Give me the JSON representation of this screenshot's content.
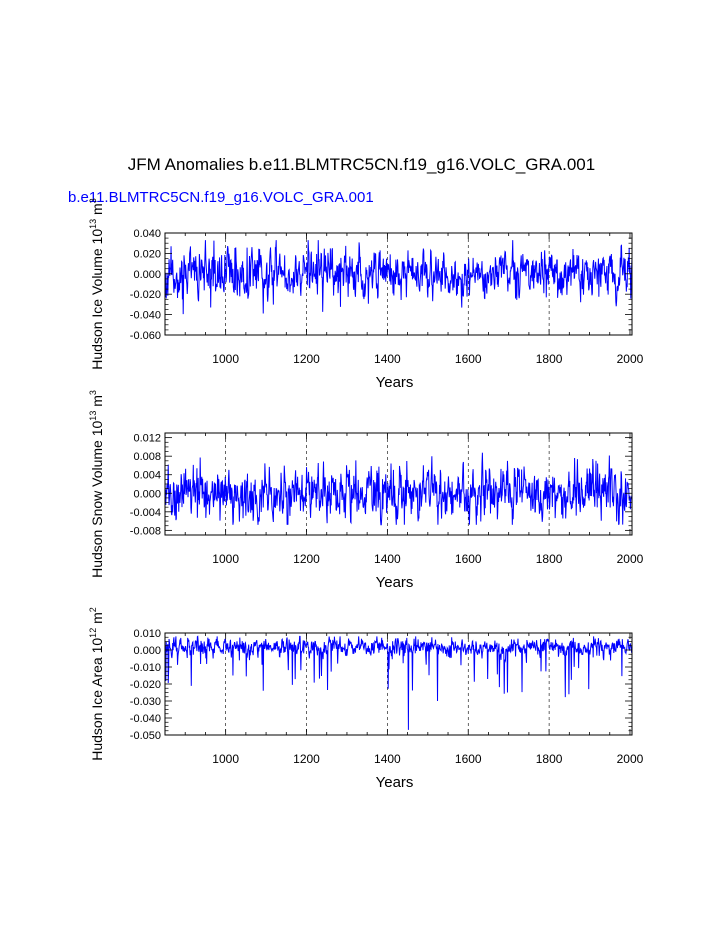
{
  "title": "JFM Anomalies b.e11.BLMTRC5CN.f19_g16.VOLC_GRA.001",
  "subtitle": "b.e11.BLMTRC5CN.f19_g16.VOLC_GRA.001",
  "colors": {
    "line": "#0000ff",
    "axis": "#000000",
    "subtitle": "#0000ff"
  },
  "chart_data": [
    {
      "type": "line",
      "name": "ice-volume",
      "xlabel": "Years",
      "ylabel": {
        "main": "Hudson Ice Volume 10",
        "exp": "13",
        "unit": " m",
        "unitexp": "3"
      },
      "xlim": [
        850,
        2005
      ],
      "ylim": [
        -0.06,
        0.04
      ],
      "xticks": [
        1000,
        1200,
        1400,
        1600,
        1800,
        2000
      ],
      "xtick_labels": [
        "1000",
        "1200",
        "1400",
        "1600",
        "1800",
        "2000"
      ],
      "yticks": [
        -0.06,
        -0.04,
        -0.02,
        0.0,
        0.02,
        0.04
      ],
      "ytick_labels": [
        "-0.060",
        "-0.040",
        "-0.020",
        "0.000",
        "0.020",
        "0.040"
      ],
      "vgrid": [
        1000,
        1200,
        1400,
        1600,
        1800
      ],
      "series": [
        {
          "name": "Hudson Ice Volume",
          "x_start": 850,
          "x_end": 2005,
          "n": 1156,
          "seed": 11,
          "amp": 0.0115,
          "spike_prob": 0.01,
          "spike_amp": 0.028,
          "spike_dir": 0,
          "floor": -0.042,
          "ceil": 0.033
        }
      ]
    },
    {
      "type": "line",
      "name": "snow-volume",
      "xlabel": "Years",
      "ylabel": {
        "main": "Hudson Snow Volume 10",
        "exp": "13",
        "unit": " m",
        "unitexp": "3"
      },
      "xlim": [
        850,
        2005
      ],
      "ylim": [
        -0.009,
        0.013
      ],
      "xticks": [
        1000,
        1200,
        1400,
        1600,
        1800,
        2000
      ],
      "xtick_labels": [
        "1000",
        "1200",
        "1400",
        "1600",
        "1800",
        "2000"
      ],
      "yticks": [
        -0.008,
        -0.004,
        0.0,
        0.004,
        0.008,
        0.012
      ],
      "ytick_labels": [
        "-0.008",
        "-0.004",
        "0.000",
        "0.004",
        "0.008",
        "0.012"
      ],
      "vgrid": [
        1000,
        1200,
        1400,
        1600,
        1800
      ],
      "series": [
        {
          "name": "Hudson Snow Volume",
          "x_start": 850,
          "x_end": 2005,
          "n": 1156,
          "seed": 29,
          "amp": 0.0028,
          "spike_prob": 0.012,
          "spike_amp": 0.0065,
          "spike_dir": 1,
          "floor": -0.0068,
          "ceil": 0.0095
        }
      ]
    },
    {
      "type": "line",
      "name": "ice-area",
      "xlabel": "Years",
      "ylabel": {
        "main": "Hudson Ice Area 10",
        "exp": "12",
        "unit": " m",
        "unitexp": "2"
      },
      "xlim": [
        850,
        2005
      ],
      "ylim": [
        -0.05,
        0.01
      ],
      "xticks": [
        1000,
        1200,
        1400,
        1600,
        1800,
        2000
      ],
      "xtick_labels": [
        "1000",
        "1200",
        "1400",
        "1600",
        "1800",
        "2000"
      ],
      "yticks": [
        -0.05,
        -0.04,
        -0.03,
        -0.02,
        -0.01,
        0.0,
        0.01
      ],
      "ytick_labels": [
        "-0.050",
        "-0.040",
        "-0.030",
        "-0.020",
        "-0.010",
        "0.000",
        "0.010"
      ],
      "vgrid": [
        1000,
        1200,
        1400,
        1600,
        1800
      ],
      "series": [
        {
          "name": "Hudson Ice Area",
          "x_start": 850,
          "x_end": 2005,
          "n": 1156,
          "seed": 47,
          "amp": 0.0028,
          "spike_prob": 0.035,
          "spike_amp": 0.02,
          "spike_dir": -1,
          "floor": -0.047,
          "ceil": 0.008,
          "bias": 0.0015,
          "events": [
            {
              "x": 1452,
              "y": -0.047
            },
            {
              "x": 1524,
              "y": -0.03
            },
            {
              "x": 1697,
              "y": -0.025
            },
            {
              "x": 1093,
              "y": -0.024
            },
            {
              "x": 1849,
              "y": -0.026
            },
            {
              "x": 1898,
              "y": -0.023
            }
          ]
        }
      ]
    }
  ]
}
